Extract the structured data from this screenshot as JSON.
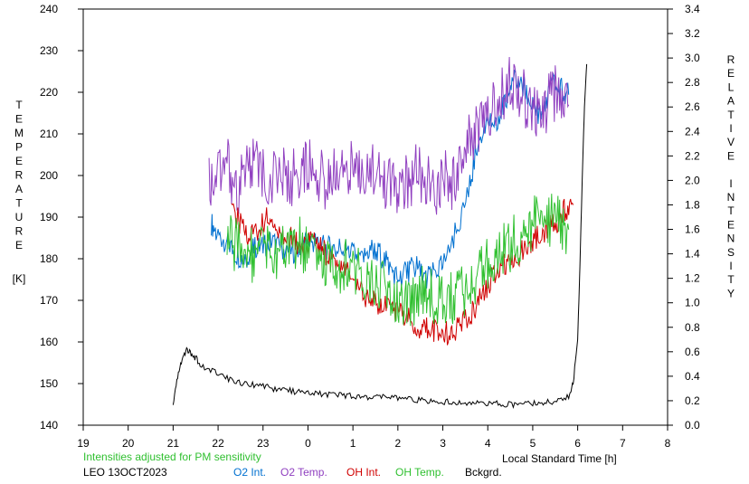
{
  "chart_data": {
    "type": "line",
    "xlabel": "Local Standard Time [h]",
    "ylabel_left": "TEMPERATURE",
    "ylabel_left_unit": "[K]",
    "ylabel_right": "RELATIVE INTENSITY",
    "x_ticks": [
      "19",
      "20",
      "21",
      "22",
      "23",
      "0",
      "1",
      "2",
      "3",
      "4",
      "5",
      "6",
      "7",
      "8"
    ],
    "xlim": [
      19,
      32
    ],
    "ylim_left": [
      140,
      240
    ],
    "y_ticks_left": [
      "140",
      "150",
      "160",
      "170",
      "180",
      "190",
      "200",
      "210",
      "220",
      "230",
      "240"
    ],
    "ylim_right": [
      0.0,
      3.4
    ],
    "y_ticks_right": [
      "0.0",
      "0.2",
      "0.4",
      "0.6",
      "0.8",
      "1.0",
      "1.2",
      "1.4",
      "1.6",
      "1.8",
      "2.0",
      "2.2",
      "2.4",
      "2.6",
      "2.8",
      "3.0",
      "3.2",
      "3.4"
    ],
    "grid": false,
    "legend_position": "bottom",
    "series": [
      {
        "name": "O2 Int.",
        "color": "#0070d0",
        "axis": "right",
        "x": [
          21.85,
          22.0,
          22.2,
          22.4,
          22.6,
          22.8,
          23.0,
          23.2,
          23.4,
          23.6,
          23.8,
          24.0,
          24.2,
          24.4,
          24.6,
          24.8,
          25.0,
          25.2,
          25.4,
          25.6,
          25.8,
          26.0,
          26.2,
          26.4,
          26.6,
          26.8,
          27.0,
          27.3,
          27.6,
          27.8,
          28.0,
          28.2,
          28.4,
          28.6,
          28.8,
          29.0,
          29.2,
          29.4,
          29.6,
          29.8
        ],
        "values": [
          1.65,
          1.55,
          1.5,
          1.4,
          1.35,
          1.45,
          1.45,
          1.5,
          1.45,
          1.4,
          1.45,
          1.5,
          1.5,
          1.45,
          1.45,
          1.45,
          1.4,
          1.35,
          1.45,
          1.4,
          1.3,
          1.2,
          1.25,
          1.3,
          1.2,
          1.25,
          1.3,
          1.6,
          1.95,
          2.35,
          2.45,
          2.5,
          2.65,
          2.85,
          2.75,
          2.6,
          2.5,
          2.8,
          2.75,
          2.7
        ]
      },
      {
        "name": "O2 Temp.",
        "color": "#9040c0",
        "axis": "left",
        "x": [
          21.8,
          22.0,
          22.2,
          22.4,
          22.6,
          22.8,
          23.0,
          23.4,
          23.6,
          23.8,
          24.0,
          24.2,
          24.4,
          24.6,
          24.8,
          25.0,
          25.2,
          25.4,
          25.6,
          25.8,
          26.0,
          26.2,
          26.4,
          26.6,
          26.8,
          27.0,
          27.2,
          27.4,
          27.6,
          27.8,
          28.0,
          28.2,
          28.4,
          28.6,
          28.8,
          29.0,
          29.2,
          29.4,
          29.6,
          29.8
        ],
        "values": [
          198,
          202,
          204,
          196,
          201,
          203,
          200,
          200,
          199,
          201,
          202,
          201,
          198,
          201,
          203,
          202,
          200,
          203,
          199,
          198,
          197,
          198,
          201,
          200,
          196,
          200,
          198,
          205,
          208,
          211,
          214,
          218,
          221,
          223,
          219,
          215,
          213,
          219,
          220,
          217
        ]
      },
      {
        "name": "OH Int.",
        "color": "#d00000",
        "axis": "right",
        "x": [
          22.3,
          22.5,
          22.7,
          22.9,
          23.1,
          23.3,
          23.5,
          23.7,
          23.9,
          24.1,
          24.3,
          24.5,
          24.7,
          24.9,
          25.1,
          25.3,
          25.5,
          25.7,
          25.9,
          26.1,
          26.3,
          26.5,
          26.7,
          26.9,
          27.1,
          27.3,
          27.5,
          27.7,
          27.9,
          28.1,
          28.3,
          28.5,
          28.7,
          28.9,
          29.1,
          29.3,
          29.5,
          29.7,
          29.9
        ],
        "values": [
          1.75,
          1.65,
          1.55,
          1.6,
          1.7,
          1.6,
          1.55,
          1.5,
          1.45,
          1.5,
          1.45,
          1.35,
          1.3,
          1.25,
          1.15,
          1.05,
          1.0,
          1.0,
          0.95,
          0.9,
          0.85,
          0.8,
          0.78,
          0.75,
          0.75,
          0.78,
          0.85,
          0.95,
          1.1,
          1.2,
          1.3,
          1.35,
          1.4,
          1.45,
          1.55,
          1.6,
          1.65,
          1.75,
          1.8
        ]
      },
      {
        "name": "OH Temp.",
        "color": "#30c030",
        "axis": "left",
        "x": [
          22.2,
          22.4,
          22.6,
          22.8,
          23.0,
          23.2,
          23.4,
          23.6,
          23.8,
          24.0,
          24.2,
          24.4,
          24.6,
          24.8,
          25.0,
          25.2,
          25.4,
          25.6,
          25.8,
          26.0,
          26.2,
          26.4,
          26.6,
          26.8,
          27.0,
          27.2,
          27.4,
          27.6,
          27.8,
          28.0,
          28.2,
          28.4,
          28.6,
          28.8,
          29.0,
          29.2,
          29.4,
          29.6,
          29.8
        ],
        "values": [
          185,
          183,
          182,
          180,
          181,
          182,
          181,
          183,
          184,
          182,
          180,
          179,
          178,
          179,
          178,
          176,
          175,
          174,
          173,
          171,
          170,
          171,
          172,
          170,
          169,
          170,
          172,
          174,
          176,
          179,
          181,
          182,
          184,
          187,
          189,
          188,
          190,
          188,
          187
        ]
      },
      {
        "name": "Bckgrd.",
        "color": "#000000",
        "axis": "right",
        "x": [
          21.0,
          21.1,
          21.2,
          21.3,
          21.4,
          21.5,
          21.6,
          21.8,
          22.0,
          22.2,
          22.4,
          22.6,
          22.8,
          23.0,
          23.2,
          23.4,
          23.6,
          23.8,
          24.0,
          24.2,
          24.4,
          24.6,
          24.8,
          25.0,
          25.2,
          25.4,
          25.6,
          25.8,
          26.0,
          26.2,
          26.4,
          26.6,
          26.8,
          27.0,
          27.2,
          27.4,
          27.6,
          27.8,
          28.0,
          28.2,
          28.4,
          28.6,
          28.8,
          29.0,
          29.2,
          29.4,
          29.6,
          29.8,
          29.9,
          30.0,
          30.05,
          30.1,
          30.15,
          30.2
        ],
        "values": [
          0.15,
          0.4,
          0.55,
          0.62,
          0.58,
          0.55,
          0.5,
          0.45,
          0.42,
          0.38,
          0.36,
          0.34,
          0.33,
          0.32,
          0.3,
          0.29,
          0.28,
          0.27,
          0.26,
          0.26,
          0.25,
          0.25,
          0.24,
          0.24,
          0.23,
          0.23,
          0.23,
          0.22,
          0.22,
          0.21,
          0.21,
          0.2,
          0.2,
          0.19,
          0.19,
          0.18,
          0.18,
          0.18,
          0.18,
          0.18,
          0.17,
          0.17,
          0.18,
          0.18,
          0.18,
          0.19,
          0.2,
          0.24,
          0.35,
          0.7,
          1.3,
          2.0,
          2.6,
          2.95
        ]
      }
    ]
  },
  "notes": {
    "adjustment": "Intensities adjusted for PM sensitivity",
    "station": "LEO 13OCT2023"
  }
}
